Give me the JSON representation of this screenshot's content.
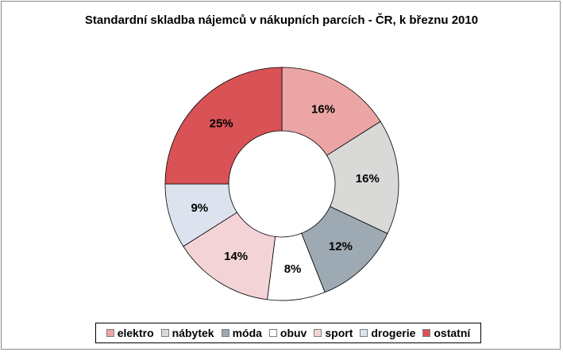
{
  "chart_data": {
    "type": "pie",
    "subtype": "doughnut",
    "title": "Standardní skladba nájemců v nákupních parcích - ČR, k březnu 2010",
    "categories": [
      "elektro",
      "nábytek",
      "móda",
      "obuv",
      "sport",
      "drogerie",
      "ostatní"
    ],
    "values": [
      16,
      16,
      12,
      8,
      14,
      9,
      25
    ],
    "value_labels": [
      "16%",
      "16%",
      "12%",
      "8%",
      "14%",
      "9%",
      "25%"
    ],
    "colors": [
      "#eca5a5",
      "#d9d9d7",
      "#9eaab3",
      "#ffffff",
      "#f4d3d6",
      "#dce3ee",
      "#d95255"
    ],
    "legend_position": "bottom"
  }
}
